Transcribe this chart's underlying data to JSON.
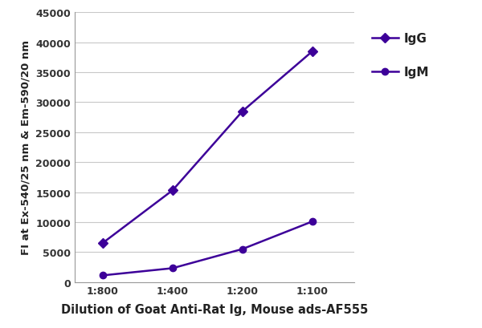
{
  "x_labels": [
    "1:800",
    "1:400",
    "1:200",
    "1:100"
  ],
  "x_positions": [
    1,
    2,
    3,
    4
  ],
  "IgG_values": [
    6500,
    15300,
    28500,
    38500
  ],
  "IgM_values": [
    1100,
    2300,
    5500,
    10100
  ],
  "line_color": "#3d0099",
  "IgG_marker": "D",
  "IgM_marker": "o",
  "marker_size": 6,
  "xlabel": "Dilution of Goat Anti-Rat Ig, Mouse ads-AF555",
  "ylabel": "FI at Ex-540/25 nm & Em-590/20 nm",
  "ylim": [
    0,
    45000
  ],
  "yticks": [
    0,
    5000,
    10000,
    15000,
    20000,
    25000,
    30000,
    35000,
    40000,
    45000
  ],
  "legend_labels": [
    "IgG",
    "IgM"
  ],
  "background_color": "#ffffff",
  "grid_color": "#c8c8c8",
  "xlabel_fontsize": 10.5,
  "ylabel_fontsize": 9.5,
  "tick_fontsize": 9,
  "legend_fontsize": 11
}
